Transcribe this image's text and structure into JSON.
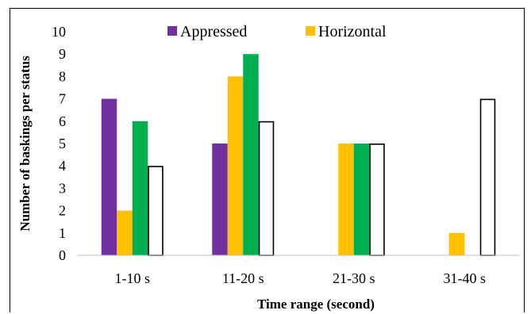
{
  "chart_data": {
    "type": "bar",
    "categories": [
      "1-10 s",
      "11-20 s",
      "21-30 s",
      "31-40 s"
    ],
    "series": [
      {
        "name": "Appressed",
        "color": "#7030a0",
        "values": [
          7,
          5,
          0,
          0
        ]
      },
      {
        "name": "Horizontal",
        "color": "#ffc000",
        "values": [
          2,
          8,
          5,
          1
        ]
      },
      {
        "name": "",
        "color": "#00b050",
        "values": [
          6,
          9,
          5,
          0
        ]
      },
      {
        "name": "",
        "color": "#ffffff",
        "stroke": "#000000",
        "values": [
          4,
          6,
          5,
          7
        ]
      }
    ],
    "xlabel": "Time range (second)",
    "ylabel": "Number of baskings per status",
    "ylim": [
      0,
      10
    ],
    "yticks": [
      0,
      1,
      2,
      3,
      4,
      5,
      6,
      7,
      8,
      9,
      10
    ],
    "grid": false,
    "legend": "top-center"
  }
}
